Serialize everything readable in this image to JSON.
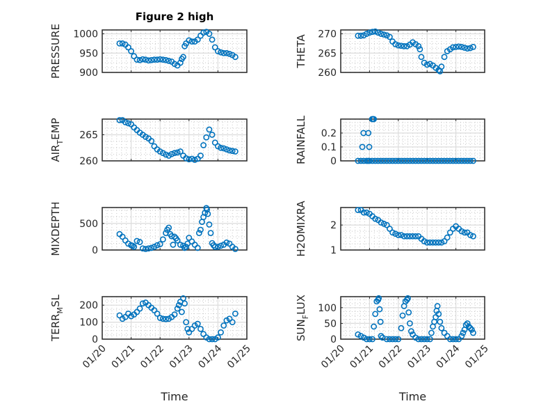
{
  "figure": {
    "title": "Figure 2 high",
    "marker_color": "#0072BD",
    "x_tick_labels": [
      "01/20",
      "01/21",
      "01/22",
      "01/23",
      "01/24",
      "01/25"
    ],
    "x_label": "Time"
  },
  "chart_data": [
    {
      "type": "scatter",
      "ylabel": "PRESSURE",
      "title": "Figure 2 high",
      "xlim": [
        0,
        5
      ],
      "ylim": [
        900,
        1010
      ],
      "yticks": [
        900,
        950,
        1000
      ],
      "grid": true,
      "x": [
        0.6,
        0.7,
        0.8,
        0.9,
        1.0,
        1.1,
        1.2,
        1.3,
        1.4,
        1.5,
        1.6,
        1.7,
        1.8,
        1.9,
        2.0,
        2.1,
        2.2,
        2.3,
        2.4,
        2.5,
        2.6,
        2.7,
        2.75,
        2.8,
        2.85,
        2.9,
        3.0,
        3.1,
        3.2,
        3.3,
        3.4,
        3.5,
        3.6,
        3.7,
        3.8,
        3.9,
        4.0,
        4.1,
        4.2,
        4.3,
        4.4,
        4.5,
        4.6
      ],
      "values": [
        975,
        975,
        972,
        965,
        955,
        942,
        933,
        932,
        934,
        933,
        931,
        932,
        933,
        933,
        934,
        933,
        932,
        930,
        928,
        922,
        918,
        925,
        935,
        940,
        968,
        975,
        983,
        980,
        980,
        985,
        995,
        1003,
        1005,
        1000,
        985,
        965,
        955,
        952,
        950,
        950,
        948,
        945,
        940
      ]
    },
    {
      "type": "scatter",
      "ylabel": "THETA",
      "xlim": [
        0,
        5
      ],
      "ylim": [
        260,
        271
      ],
      "yticks": [
        260,
        265,
        270
      ],
      "grid": true,
      "x": [
        0.6,
        0.7,
        0.8,
        0.9,
        1.0,
        1.1,
        1.2,
        1.3,
        1.4,
        1.5,
        1.6,
        1.7,
        1.8,
        1.9,
        2.0,
        2.1,
        2.2,
        2.3,
        2.4,
        2.5,
        2.6,
        2.7,
        2.75,
        2.8,
        2.9,
        3.0,
        3.1,
        3.2,
        3.3,
        3.4,
        3.45,
        3.5,
        3.6,
        3.7,
        3.8,
        3.9,
        4.0,
        4.1,
        4.2,
        4.3,
        4.4,
        4.5,
        4.6
      ],
      "values": [
        269.5,
        269.5,
        269.6,
        270.0,
        270.3,
        270.5,
        270.6,
        270.3,
        270.0,
        269.8,
        269.6,
        269.2,
        268.0,
        267.3,
        267.0,
        266.9,
        266.8,
        266.8,
        267.2,
        267.8,
        267.3,
        266.8,
        266.0,
        264.0,
        262.5,
        262.0,
        262.2,
        261.8,
        261.2,
        260.6,
        260.3,
        261.5,
        264.0,
        265.5,
        266.0,
        266.5,
        266.6,
        266.7,
        266.6,
        266.4,
        266.2,
        266.3,
        266.6
      ]
    },
    {
      "type": "scatter",
      "ylabel": "AIR_TEMP",
      "xlim": [
        0,
        5
      ],
      "ylim": [
        260,
        268
      ],
      "yticks": [
        260,
        265
      ],
      "grid": true,
      "x": [
        0.6,
        0.7,
        0.8,
        0.9,
        1.0,
        1.1,
        1.2,
        1.3,
        1.4,
        1.5,
        1.6,
        1.7,
        1.8,
        1.9,
        2.0,
        2.1,
        2.2,
        2.3,
        2.4,
        2.5,
        2.6,
        2.7,
        2.8,
        2.9,
        3.0,
        3.1,
        3.2,
        3.3,
        3.4,
        3.5,
        3.6,
        3.7,
        3.8,
        3.9,
        4.0,
        4.1,
        4.2,
        4.3,
        4.4,
        4.5,
        4.6
      ],
      "values": [
        267.8,
        267.8,
        267.4,
        267.2,
        267.0,
        266.4,
        265.9,
        265.4,
        265.0,
        264.6,
        264.3,
        263.8,
        262.8,
        262.2,
        261.8,
        261.5,
        261.2,
        261.0,
        261.3,
        261.5,
        261.6,
        261.8,
        261.0,
        260.5,
        260.3,
        260.4,
        260.2,
        260.4,
        261.0,
        263.0,
        264.5,
        266.0,
        265.0,
        263.5,
        262.8,
        262.5,
        262.4,
        262.2,
        262.0,
        261.9,
        261.8
      ]
    },
    {
      "type": "scatter",
      "ylabel": "RAINFALL",
      "xlim": [
        0,
        5
      ],
      "ylim": [
        0,
        0.3
      ],
      "yticks": [
        0,
        0.1,
        0.2
      ],
      "grid": true,
      "x": [
        0.6,
        0.7,
        0.8,
        0.9,
        0.95,
        1.0,
        1.1,
        1.2,
        1.3,
        1.4,
        1.5,
        1.6,
        1.7,
        1.8,
        1.9,
        2.0,
        2.1,
        2.2,
        2.3,
        2.4,
        2.5,
        2.6,
        2.7,
        2.8,
        2.9,
        3.0,
        3.1,
        3.2,
        3.3,
        3.4,
        3.5,
        3.6,
        3.7,
        3.8,
        3.9,
        4.0,
        4.1,
        4.2,
        4.3,
        4.4,
        4.5,
        4.6,
        0.75,
        0.79,
        0.96,
        0.99,
        1.09,
        1.12,
        1.15
      ],
      "values": [
        0,
        0,
        0,
        0,
        0,
        0,
        0,
        0,
        0,
        0,
        0,
        0,
        0,
        0,
        0,
        0,
        0,
        0,
        0,
        0,
        0,
        0,
        0,
        0,
        0,
        0,
        0,
        0,
        0,
        0,
        0,
        0,
        0,
        0,
        0,
        0,
        0,
        0,
        0,
        0,
        0,
        0,
        0.1,
        0.2,
        0.2,
        0.1,
        0.3,
        0.3,
        0.3
      ]
    },
    {
      "type": "scatter",
      "ylabel": "MIXDEPTH",
      "xlim": [
        0,
        5
      ],
      "ylim": [
        0,
        800
      ],
      "yticks": [
        0,
        500
      ],
      "grid": true,
      "x": [
        0.6,
        0.7,
        0.8,
        0.9,
        1.0,
        1.05,
        1.1,
        1.2,
        1.3,
        1.4,
        1.5,
        1.6,
        1.7,
        1.8,
        1.9,
        2.0,
        2.1,
        2.2,
        2.25,
        2.3,
        2.35,
        2.4,
        2.45,
        2.5,
        2.55,
        2.6,
        2.7,
        2.8,
        2.85,
        2.9,
        2.95,
        3.0,
        3.1,
        3.2,
        3.3,
        3.35,
        3.4,
        3.45,
        3.5,
        3.55,
        3.6,
        3.62,
        3.65,
        3.7,
        3.75,
        3.8,
        3.85,
        3.9,
        4.0,
        4.1,
        4.2,
        4.3,
        4.4,
        4.5,
        4.6
      ],
      "values": [
        300,
        250,
        180,
        120,
        90,
        80,
        60,
        170,
        150,
        30,
        20,
        30,
        40,
        60,
        90,
        110,
        200,
        320,
        380,
        420,
        300,
        260,
        100,
        250,
        220,
        180,
        100,
        80,
        40,
        60,
        120,
        230,
        160,
        100,
        40,
        320,
        380,
        530,
        620,
        700,
        790,
        760,
        680,
        480,
        320,
        130,
        90,
        60,
        60,
        80,
        100,
        140,
        120,
        60,
        20
      ]
    },
    {
      "type": "scatter",
      "ylabel": "H2OMIXRA",
      "xlim": [
        0,
        5
      ],
      "ylim": [
        1,
        2.7
      ],
      "yticks": [
        1,
        2
      ],
      "grid": true,
      "x": [
        0.6,
        0.7,
        0.8,
        0.9,
        1.0,
        1.1,
        1.2,
        1.3,
        1.4,
        1.5,
        1.6,
        1.7,
        1.8,
        1.9,
        2.0,
        2.1,
        2.2,
        2.3,
        2.4,
        2.5,
        2.6,
        2.7,
        2.8,
        2.9,
        3.0,
        3.1,
        3.2,
        3.3,
        3.4,
        3.5,
        3.6,
        3.7,
        3.8,
        3.9,
        4.0,
        4.1,
        4.2,
        4.3,
        4.4,
        4.5,
        4.6
      ],
      "values": [
        2.6,
        2.6,
        2.5,
        2.5,
        2.45,
        2.35,
        2.25,
        2.2,
        2.1,
        2.05,
        2.0,
        1.85,
        1.7,
        1.65,
        1.6,
        1.6,
        1.55,
        1.55,
        1.55,
        1.55,
        1.55,
        1.55,
        1.45,
        1.35,
        1.3,
        1.3,
        1.3,
        1.3,
        1.3,
        1.3,
        1.35,
        1.5,
        1.7,
        1.85,
        1.95,
        1.85,
        1.75,
        1.7,
        1.7,
        1.6,
        1.55
      ]
    },
    {
      "type": "scatter",
      "ylabel": "TERR_MSL",
      "xlim": [
        0,
        5
      ],
      "ylim": [
        0,
        250
      ],
      "yticks": [
        0,
        100,
        200
      ],
      "grid": true,
      "x": [
        0.6,
        0.7,
        0.8,
        0.9,
        1.0,
        1.1,
        1.2,
        1.3,
        1.4,
        1.5,
        1.6,
        1.7,
        1.8,
        1.9,
        2.0,
        2.1,
        2.2,
        2.3,
        2.4,
        2.5,
        2.6,
        2.65,
        2.7,
        2.75,
        2.8,
        2.85,
        2.9,
        2.95,
        3.0,
        3.1,
        3.2,
        3.3,
        3.4,
        3.5,
        3.6,
        3.7,
        3.8,
        3.9,
        4.0,
        4.1,
        4.2,
        4.3,
        4.4,
        4.5,
        4.6
      ],
      "values": [
        140,
        120,
        130,
        150,
        135,
        145,
        160,
        180,
        210,
        215,
        200,
        185,
        170,
        150,
        125,
        120,
        118,
        120,
        130,
        145,
        180,
        200,
        220,
        160,
        240,
        210,
        100,
        60,
        40,
        60,
        80,
        90,
        60,
        30,
        10,
        0,
        0,
        0,
        10,
        40,
        80,
        110,
        120,
        100,
        150
      ]
    },
    {
      "type": "scatter",
      "ylabel": "SUN_FLUX",
      "xaxis_label": "Time",
      "xticks": [
        "01/20",
        "01/21",
        "01/22",
        "01/23",
        "01/24",
        "01/25"
      ],
      "xlim": [
        0,
        5
      ],
      "ylim": [
        0,
        135
      ],
      "yticks": [
        0,
        50,
        100
      ],
      "grid": true,
      "x": [
        0.6,
        0.7,
        0.8,
        0.9,
        1.0,
        1.1,
        1.15,
        1.2,
        1.25,
        1.3,
        1.32,
        1.35,
        1.38,
        1.4,
        1.45,
        1.6,
        1.7,
        1.8,
        1.9,
        2.0,
        2.1,
        2.15,
        2.2,
        2.25,
        2.3,
        2.33,
        2.36,
        2.4,
        2.45,
        2.5,
        2.6,
        2.7,
        2.8,
        2.9,
        3.0,
        3.1,
        3.15,
        3.2,
        3.25,
        3.3,
        3.33,
        3.36,
        3.4,
        3.45,
        3.5,
        3.6,
        3.7,
        3.8,
        3.9,
        4.0,
        4.1,
        4.2,
        4.25,
        4.3,
        4.35,
        4.4,
        4.45,
        4.5,
        4.55,
        4.6
      ],
      "values": [
        15,
        10,
        5,
        0,
        0,
        0,
        40,
        80,
        120,
        125,
        130,
        95,
        55,
        10,
        5,
        0,
        0,
        0,
        0,
        0,
        35,
        75,
        105,
        120,
        125,
        130,
        85,
        50,
        25,
        15,
        5,
        0,
        0,
        0,
        0,
        0,
        20,
        40,
        55,
        70,
        90,
        105,
        80,
        55,
        35,
        20,
        10,
        0,
        0,
        0,
        0,
        10,
        20,
        30,
        45,
        50,
        40,
        35,
        30,
        20
      ]
    }
  ]
}
